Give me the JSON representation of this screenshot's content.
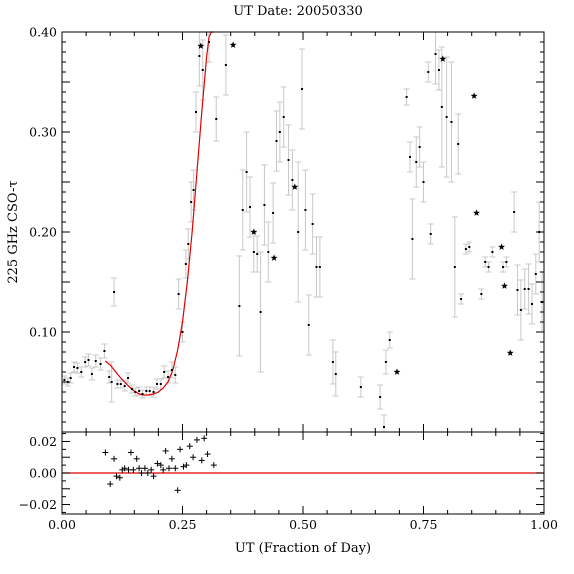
{
  "chart_data": [
    {
      "type": "scatter",
      "title": "UT Date: 20050330",
      "ylabel": "225 GHz CSO-τ",
      "xlim": [
        0.0,
        1.0
      ],
      "ylim": [
        0.0,
        0.4
      ],
      "xticks": [
        "0.00",
        "0.25",
        "0.50",
        "0.75",
        "1.00"
      ],
      "yticks": [
        "0.10",
        "0.20",
        "0.30",
        "0.40"
      ],
      "ytick_values": [
        0.1,
        0.2,
        0.3,
        0.4
      ],
      "fit_color": "#e00000",
      "errorbar_color": "#c8c8c8",
      "series": [
        {
          "name": "",
          "marker": "dot",
          "points": [
            {
              "x": 0.005,
              "y": 0.052,
              "e": 0.004
            },
            {
              "x": 0.012,
              "y": 0.05,
              "e": 0.004
            },
            {
              "x": 0.018,
              "y": 0.054,
              "e": 0.005
            },
            {
              "x": 0.025,
              "y": 0.065,
              "e": 0.005
            },
            {
              "x": 0.032,
              "y": 0.064,
              "e": 0.005
            },
            {
              "x": 0.04,
              "y": 0.06,
              "e": 0.005
            },
            {
              "x": 0.048,
              "y": 0.07,
              "e": 0.005
            },
            {
              "x": 0.055,
              "y": 0.072,
              "e": 0.006
            },
            {
              "x": 0.062,
              "y": 0.058,
              "e": 0.006
            },
            {
              "x": 0.07,
              "y": 0.071,
              "e": 0.006
            },
            {
              "x": 0.08,
              "y": 0.068,
              "e": 0.006
            },
            {
              "x": 0.088,
              "y": 0.081,
              "e": 0.007
            },
            {
              "x": 0.098,
              "y": 0.055,
              "e": 0.006
            },
            {
              "x": 0.103,
              "y": 0.05,
              "e": 0.02
            },
            {
              "x": 0.108,
              "y": 0.14,
              "e": 0.014
            },
            {
              "x": 0.115,
              "y": 0.048,
              "e": 0.004
            },
            {
              "x": 0.122,
              "y": 0.048,
              "e": 0.004
            },
            {
              "x": 0.13,
              "y": 0.046,
              "e": 0.005
            },
            {
              "x": 0.137,
              "y": 0.054,
              "e": 0.005
            },
            {
              "x": 0.145,
              "y": 0.043,
              "e": 0.004
            },
            {
              "x": 0.152,
              "y": 0.04,
              "e": 0.004
            },
            {
              "x": 0.16,
              "y": 0.041,
              "e": 0.004
            },
            {
              "x": 0.167,
              "y": 0.038,
              "e": 0.004
            },
            {
              "x": 0.175,
              "y": 0.041,
              "e": 0.004
            },
            {
              "x": 0.182,
              "y": 0.041,
              "e": 0.004
            },
            {
              "x": 0.19,
              "y": 0.04,
              "e": 0.005
            },
            {
              "x": 0.197,
              "y": 0.048,
              "e": 0.005
            },
            {
              "x": 0.205,
              "y": 0.048,
              "e": 0.005
            },
            {
              "x": 0.212,
              "y": 0.06,
              "e": 0.006
            },
            {
              "x": 0.22,
              "y": 0.055,
              "e": 0.006
            },
            {
              "x": 0.228,
              "y": 0.062,
              "e": 0.008
            },
            {
              "x": 0.235,
              "y": 0.057,
              "e": 0.008
            },
            {
              "x": 0.242,
              "y": 0.138,
              "e": 0.015
            },
            {
              "x": 0.25,
              "y": 0.1,
              "e": 0.01
            },
            {
              "x": 0.257,
              "y": 0.168,
              "e": 0.014
            },
            {
              "x": 0.262,
              "y": 0.188,
              "e": 0.015
            },
            {
              "x": 0.268,
              "y": 0.23,
              "e": 0.02
            },
            {
              "x": 0.273,
              "y": 0.242,
              "e": 0.02
            },
            {
              "x": 0.278,
              "y": 0.32,
              "e": 0.02
            },
            {
              "x": 0.285,
              "y": 0.376,
              "e": 0.03
            },
            {
              "x": 0.292,
              "y": 0.362,
              "e": 0.03
            },
            {
              "x": 0.305,
              "y": 0.39,
              "e": 0.02
            },
            {
              "x": 0.32,
              "y": 0.313,
              "e": 0.022
            },
            {
              "x": 0.34,
              "y": 0.367,
              "e": 0.03
            },
            {
              "x": 0.368,
              "y": 0.126,
              "e": 0.05
            },
            {
              "x": 0.375,
              "y": 0.222,
              "e": 0.04
            },
            {
              "x": 0.383,
              "y": 0.26,
              "e": 0.04
            },
            {
              "x": 0.39,
              "y": 0.225,
              "e": 0.03
            },
            {
              "x": 0.398,
              "y": 0.18,
              "e": 0.02
            },
            {
              "x": 0.405,
              "y": 0.178,
              "e": 0.018
            },
            {
              "x": 0.412,
              "y": 0.12,
              "e": 0.06
            },
            {
              "x": 0.42,
              "y": 0.227,
              "e": 0.04
            },
            {
              "x": 0.428,
              "y": 0.18,
              "e": 0.03
            },
            {
              "x": 0.438,
              "y": 0.219,
              "e": 0.03
            },
            {
              "x": 0.445,
              "y": 0.291,
              "e": 0.03
            },
            {
              "x": 0.452,
              "y": 0.3,
              "e": 0.03
            },
            {
              "x": 0.46,
              "y": 0.315,
              "e": 0.03
            },
            {
              "x": 0.47,
              "y": 0.272,
              "e": 0.035
            },
            {
              "x": 0.478,
              "y": 0.252,
              "e": 0.03
            },
            {
              "x": 0.49,
              "y": 0.2,
              "e": 0.07
            },
            {
              "x": 0.498,
              "y": 0.343,
              "e": 0.04
            },
            {
              "x": 0.505,
              "y": 0.222,
              "e": 0.04
            },
            {
              "x": 0.512,
              "y": 0.107,
              "e": 0.03
            },
            {
              "x": 0.52,
              "y": 0.208,
              "e": 0.03
            },
            {
              "x": 0.528,
              "y": 0.165,
              "e": 0.03
            },
            {
              "x": 0.535,
              "y": 0.165,
              "e": 0.03
            },
            {
              "x": 0.562,
              "y": 0.07,
              "e": 0.022
            },
            {
              "x": 0.568,
              "y": 0.058,
              "e": 0.022
            },
            {
              "x": 0.62,
              "y": 0.045,
              "e": 0.01
            },
            {
              "x": 0.66,
              "y": 0.035,
              "e": 0.012
            },
            {
              "x": 0.668,
              "y": 0.005,
              "e": 0.012
            },
            {
              "x": 0.672,
              "y": 0.07,
              "e": 0.012
            },
            {
              "x": 0.68,
              "y": 0.092,
              "e": 0.008
            },
            {
              "x": 0.715,
              "y": 0.335,
              "e": 0.008
            },
            {
              "x": 0.722,
              "y": 0.275,
              "e": 0.015
            },
            {
              "x": 0.727,
              "y": 0.193,
              "e": 0.04
            },
            {
              "x": 0.735,
              "y": 0.27,
              "e": 0.025
            },
            {
              "x": 0.742,
              "y": 0.285,
              "e": 0.02
            },
            {
              "x": 0.75,
              "y": 0.25,
              "e": 0.02
            },
            {
              "x": 0.76,
              "y": 0.36,
              "e": 0.01
            },
            {
              "x": 0.765,
              "y": 0.198,
              "e": 0.01
            },
            {
              "x": 0.775,
              "y": 0.378,
              "e": 0.03
            },
            {
              "x": 0.782,
              "y": 0.362,
              "e": 0.02
            },
            {
              "x": 0.788,
              "y": 0.325,
              "e": 0.06
            },
            {
              "x": 0.798,
              "y": 0.315,
              "e": 0.06
            },
            {
              "x": 0.808,
              "y": 0.31,
              "e": 0.06
            },
            {
              "x": 0.815,
              "y": 0.165,
              "e": 0.05
            },
            {
              "x": 0.822,
              "y": 0.288,
              "e": 0.03
            },
            {
              "x": 0.828,
              "y": 0.133,
              "e": 0.005
            },
            {
              "x": 0.838,
              "y": 0.183,
              "e": 0.005
            },
            {
              "x": 0.845,
              "y": 0.185,
              "e": 0.005
            },
            {
              "x": 0.87,
              "y": 0.138,
              "e": 0.005
            },
            {
              "x": 0.878,
              "y": 0.17,
              "e": 0.005
            },
            {
              "x": 0.885,
              "y": 0.165,
              "e": 0.005
            },
            {
              "x": 0.893,
              "y": 0.18,
              "e": 0.005
            },
            {
              "x": 0.915,
              "y": 0.165,
              "e": 0.005
            },
            {
              "x": 0.922,
              "y": 0.17,
              "e": 0.005
            },
            {
              "x": 0.938,
              "y": 0.22,
              "e": 0.02
            },
            {
              "x": 0.945,
              "y": 0.142,
              "e": 0.025
            },
            {
              "x": 0.952,
              "y": 0.122,
              "e": 0.03
            },
            {
              "x": 0.96,
              "y": 0.143,
              "e": 0.02
            },
            {
              "x": 0.968,
              "y": 0.143,
              "e": 0.025
            },
            {
              "x": 0.975,
              "y": 0.128,
              "e": 0.02
            },
            {
              "x": 0.983,
              "y": 0.158,
              "e": 0.02
            },
            {
              "x": 0.99,
              "y": 0.2,
              "e": 0.03
            },
            {
              "x": 0.996,
              "y": 0.13,
              "e": 0.03
            }
          ]
        },
        {
          "name": "",
          "marker": "star",
          "points": [
            {
              "x": 0.288,
              "y": 0.386
            },
            {
              "x": 0.355,
              "y": 0.387
            },
            {
              "x": 0.398,
              "y": 0.2
            },
            {
              "x": 0.44,
              "y": 0.174
            },
            {
              "x": 0.483,
              "y": 0.245
            },
            {
              "x": 0.695,
              "y": 0.06
            },
            {
              "x": 0.79,
              "y": 0.373
            },
            {
              "x": 0.855,
              "y": 0.336
            },
            {
              "x": 0.86,
              "y": 0.219
            },
            {
              "x": 0.912,
              "y": 0.185
            },
            {
              "x": 0.918,
              "y": 0.146
            },
            {
              "x": 0.93,
              "y": 0.079
            }
          ]
        }
      ],
      "fit": {
        "name": "",
        "x": [
          0.09,
          0.1,
          0.11,
          0.12,
          0.13,
          0.14,
          0.15,
          0.16,
          0.17,
          0.18,
          0.19,
          0.2,
          0.21,
          0.22,
          0.23,
          0.24,
          0.25,
          0.26,
          0.27,
          0.28,
          0.29,
          0.3,
          0.305,
          0.31,
          0.315
        ],
        "y": [
          0.071,
          0.067,
          0.061,
          0.055,
          0.05,
          0.045,
          0.041,
          0.038,
          0.037,
          0.037,
          0.038,
          0.04,
          0.044,
          0.05,
          0.062,
          0.082,
          0.11,
          0.15,
          0.2,
          0.26,
          0.32,
          0.375,
          0.395,
          0.408,
          0.4
        ]
      }
    },
    {
      "type": "scatter",
      "title": "",
      "xlabel": "UT (Fraction of Day)",
      "ylabel": "",
      "xlim": [
        0.0,
        1.0
      ],
      "ylim": [
        -0.026,
        0.026
      ],
      "xticks": [
        "0.00",
        "0.25",
        "0.50",
        "0.75",
        "1.00"
      ],
      "yticks": [
        "−0.02",
        "0.00",
        "0.02"
      ],
      "ytick_values": [
        -0.02,
        0.0,
        0.02
      ],
      "zero_line_color": "#e00000",
      "series": [
        {
          "name": "",
          "marker": "plus",
          "points": [
            {
              "x": 0.09,
              "y": 0.013
            },
            {
              "x": 0.1,
              "y": -0.007
            },
            {
              "x": 0.108,
              "y": 0.009
            },
            {
              "x": 0.113,
              "y": -0.002
            },
            {
              "x": 0.12,
              "y": -0.003
            },
            {
              "x": 0.125,
              "y": 0.002
            },
            {
              "x": 0.13,
              "y": 0.003
            },
            {
              "x": 0.138,
              "y": 0.002
            },
            {
              "x": 0.143,
              "y": 0.013
            },
            {
              "x": 0.148,
              "y": 0.002
            },
            {
              "x": 0.155,
              "y": 0.009
            },
            {
              "x": 0.16,
              "y": 0.003
            },
            {
              "x": 0.165,
              "y": 0.0
            },
            {
              "x": 0.172,
              "y": 0.003
            },
            {
              "x": 0.178,
              "y": 0.0
            },
            {
              "x": 0.185,
              "y": 0.002
            },
            {
              "x": 0.19,
              "y": -0.002
            },
            {
              "x": 0.198,
              "y": 0.006
            },
            {
              "x": 0.205,
              "y": 0.005
            },
            {
              "x": 0.21,
              "y": 0.002
            },
            {
              "x": 0.215,
              "y": 0.014
            },
            {
              "x": 0.222,
              "y": 0.003
            },
            {
              "x": 0.228,
              "y": 0.009
            },
            {
              "x": 0.235,
              "y": 0.003
            },
            {
              "x": 0.24,
              "y": -0.011
            },
            {
              "x": 0.245,
              "y": 0.015
            },
            {
              "x": 0.252,
              "y": 0.004
            },
            {
              "x": 0.258,
              "y": 0.005
            },
            {
              "x": 0.265,
              "y": 0.017
            },
            {
              "x": 0.272,
              "y": 0.01
            },
            {
              "x": 0.28,
              "y": 0.021
            },
            {
              "x": 0.29,
              "y": 0.008
            },
            {
              "x": 0.295,
              "y": 0.022
            },
            {
              "x": 0.302,
              "y": 0.012
            },
            {
              "x": 0.315,
              "y": 0.005
            }
          ]
        }
      ]
    }
  ]
}
